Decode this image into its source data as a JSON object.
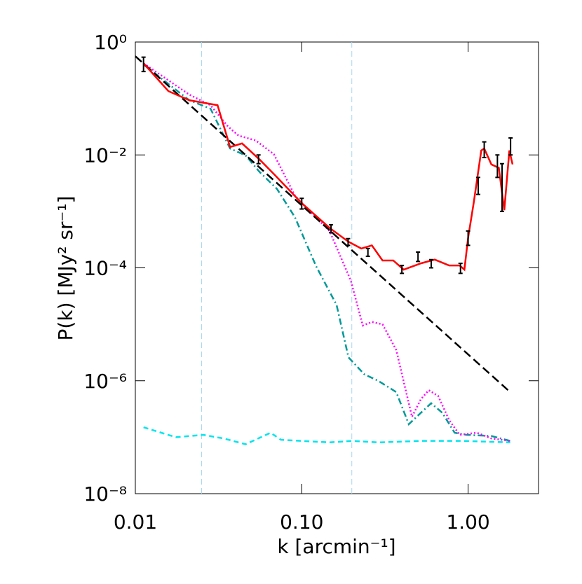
{
  "chart_data": {
    "type": "line",
    "xlabel": "k  [arcmin⁻¹]",
    "ylabel": "P(k)  [MJy² sr⁻¹]",
    "xlog": true,
    "ylog": true,
    "xlim": [
      0.01,
      2.65
    ],
    "ylim": [
      1e-08,
      1
    ],
    "xticks": [
      {
        "value": 0.01,
        "label": "0.01"
      },
      {
        "value": 0.1,
        "label": "0.10"
      },
      {
        "value": 1,
        "label": "1.00"
      }
    ],
    "yticks": [
      {
        "value": 1e-08,
        "label": "10⁻⁸"
      },
      {
        "value": 1e-06,
        "label": "10⁻⁶"
      },
      {
        "value": 0.0001,
        "label": "10⁻⁴"
      },
      {
        "value": 0.01,
        "label": "10⁻²"
      },
      {
        "value": 1,
        "label": "10⁰"
      }
    ],
    "vlines": [
      0.025,
      0.2
    ],
    "vline_color": "#a6d8ee",
    "series": [
      {
        "color": "#00e5ee",
        "dash": "dash",
        "x": [
          0.0112,
          0.0175,
          0.0256,
          0.034,
          0.046,
          0.065,
          0.075,
          0.1,
          0.147,
          0.2,
          0.29,
          0.52,
          0.93,
          1.79
        ],
        "values": [
          1.5e-07,
          1e-07,
          1.1e-07,
          9.5e-08,
          7.5e-08,
          1.2e-07,
          9e-08,
          8.6e-08,
          8.1e-08,
          8.6e-08,
          8.1e-08,
          8.6e-08,
          8.6e-08,
          8.1e-08
        ]
      },
      {
        "color": "#009999",
        "dash": "dashdot",
        "x": [
          0.0112,
          0.0211,
          0.0283,
          0.0371,
          0.046,
          0.0558,
          0.071,
          0.091,
          0.122,
          0.162,
          0.191,
          0.238,
          0.288,
          0.37,
          0.44,
          0.52,
          0.6,
          0.7,
          0.83,
          0.98,
          1.38,
          1.79
        ],
        "values": [
          0.4,
          0.093,
          0.066,
          0.013,
          0.0098,
          0.005,
          0.0025,
          0.00079,
          0.000107,
          2.2e-05,
          2.6e-06,
          1.3e-06,
          1e-06,
          6.3e-07,
          1.7e-07,
          2.7e-07,
          4e-07,
          2.7e-07,
          1.2e-07,
          1.1e-07,
          1.05e-07,
          8.6e-08
        ]
      },
      {
        "color": "#ff00ff",
        "dash": "dot",
        "x": [
          0.0112,
          0.0211,
          0.0283,
          0.036,
          0.0417,
          0.053,
          0.068,
          0.091,
          0.11,
          0.147,
          0.197,
          0.233,
          0.264,
          0.306,
          0.37,
          0.46,
          0.52,
          0.58,
          0.66,
          0.77,
          0.89,
          1.13,
          1.38,
          1.79
        ],
        "values": [
          0.42,
          0.117,
          0.076,
          0.032,
          0.022,
          0.018,
          0.0103,
          0.0019,
          0.00105,
          0.00045,
          6e-05,
          9.5e-06,
          1.1e-05,
          1e-05,
          3.5e-06,
          2.3e-07,
          4.7e-07,
          6.8e-07,
          5.4e-07,
          2e-07,
          1.1e-07,
          1.2e-07,
          9.5e-08,
          8.6e-08
        ]
      },
      {
        "color": "#000000",
        "dash": "longdash",
        "x": [
          0.01,
          1.79
        ],
        "values": [
          0.56,
          6.3e-07
        ]
      },
      {
        "color": "#ff0000",
        "dash": "solid",
        "x": [
          0.0112,
          0.0158,
          0.0211,
          0.0312,
          0.0371,
          0.0438,
          0.0558,
          0.069,
          0.1,
          0.147,
          0.191,
          0.228,
          0.264,
          0.306,
          0.355,
          0.41,
          0.52,
          0.63,
          0.77,
          0.89,
          0.95,
          1.0,
          1.08,
          1.2,
          1.25,
          1.38,
          1.53,
          1.65,
          1.77,
          1.85
        ],
        "values": [
          0.42,
          0.135,
          0.093,
          0.076,
          0.0138,
          0.016,
          0.0083,
          0.0044,
          0.0014,
          0.00051,
          0.00029,
          0.00022,
          0.00025,
          0.000135,
          0.000135,
          9.3e-05,
          0.00012,
          0.00014,
          0.00011,
          0.00011,
          9.3e-05,
          0.00034,
          0.0014,
          0.012,
          0.013,
          0.0068,
          0.0059,
          0.00105,
          0.012,
          0.0068
        ]
      }
    ],
    "errorbars": {
      "color": "#000000",
      "x": [
        0.0112,
        0.055,
        0.1,
        0.15,
        0.19,
        0.25,
        0.4,
        0.5,
        0.6,
        0.9,
        1.0,
        1.15,
        1.25,
        1.5,
        1.6,
        1.8
      ],
      "values": [
        0.42,
        0.0085,
        0.0014,
        0.0005,
        0.00029,
        0.00019,
        9.5e-05,
        0.00016,
        0.00012,
        0.0001,
        0.00035,
        0.003,
        0.013,
        0.007,
        0.004,
        0.015
      ],
      "errors": [
        0.12,
        0.0015,
        0.0003,
        8e-05,
        4e-05,
        3e-05,
        1.5e-05,
        3e-05,
        2e-05,
        2e-05,
        0.0001,
        0.001,
        0.004,
        0.003,
        0.003,
        0.005
      ]
    }
  }
}
